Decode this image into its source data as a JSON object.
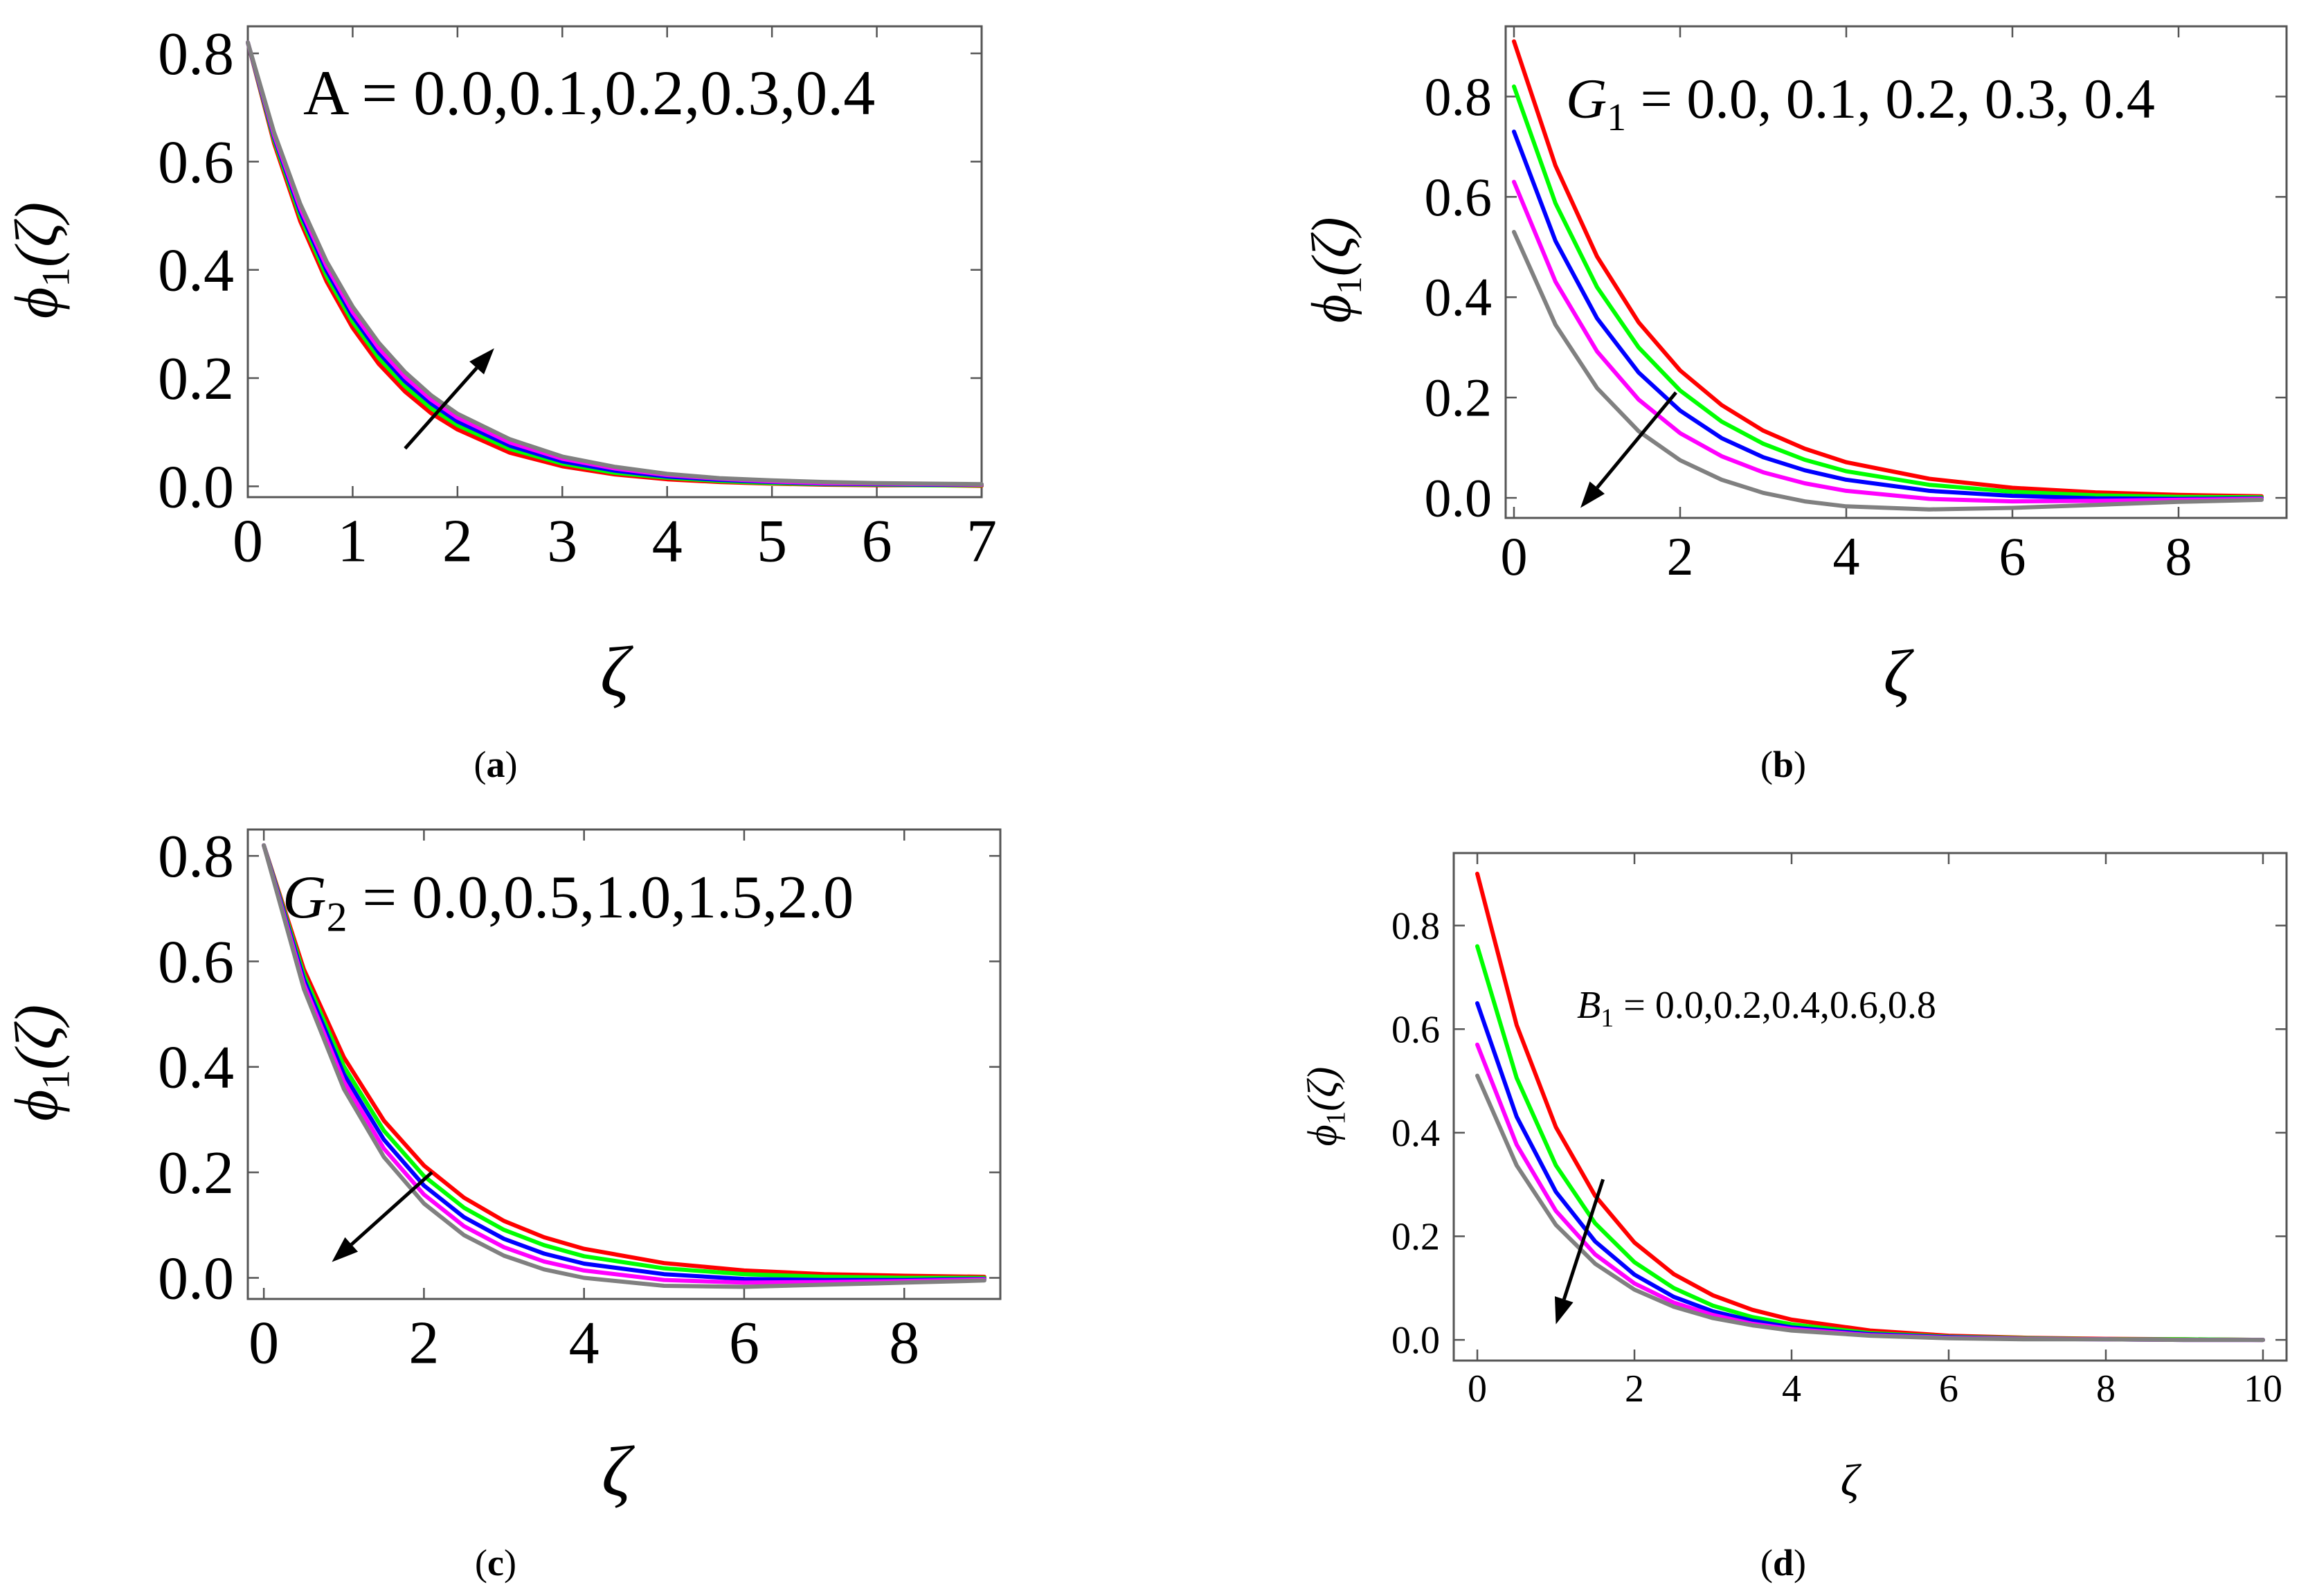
{
  "chart_data": [
    {
      "panel": "a",
      "type": "line",
      "caption": "(a)",
      "xlabel": "ζ",
      "ylabel": "ϕ1(ζ)",
      "ylabel_base": "ϕ",
      "ylabel_sub": "1",
      "ylabel_tail": "(ζ)",
      "annotation": "A = 0.0,0.1,0.2,0.3,0.4",
      "annotation_parts": {
        "var": "A",
        "sub": "",
        "values": " = 0.0,0.1,0.2,0.3,0.4"
      },
      "xlim": [
        0,
        7
      ],
      "ylim": [
        -0.02,
        0.85
      ],
      "xticks": [
        0,
        1,
        2,
        3,
        4,
        5,
        6,
        7
      ],
      "xtick_labels": [
        "0",
        "1",
        "2",
        "3",
        "4",
        "5",
        "6",
        "7"
      ],
      "yticks": [
        0.0,
        0.2,
        0.4,
        0.6,
        0.8
      ],
      "ytick_labels": [
        "0.0",
        "0.2",
        "0.4",
        "0.6",
        "0.8"
      ],
      "arrow": {
        "from": [
          1.5,
          0.07
        ],
        "to": [
          2.35,
          0.255
        ]
      },
      "series": [
        {
          "color": "#ff0000",
          "x": [
            0,
            0.25,
            0.5,
            0.75,
            1,
            1.25,
            1.5,
            1.75,
            2,
            2.5,
            3,
            3.5,
            4,
            4.5,
            5,
            5.5,
            6,
            6.5,
            7
          ],
          "values": [
            0.82,
            0.634,
            0.49,
            0.379,
            0.293,
            0.226,
            0.175,
            0.135,
            0.105,
            0.062,
            0.037,
            0.022,
            0.013,
            0.008,
            0.005,
            0.003,
            0.002,
            0.002,
            0.001
          ]
        },
        {
          "color": "#00ff00",
          "x": [
            0,
            0.25,
            0.5,
            0.75,
            1,
            1.25,
            1.5,
            1.75,
            2,
            2.5,
            3,
            3.5,
            4,
            4.5,
            5,
            5.5,
            6,
            6.5,
            7
          ],
          "values": [
            0.82,
            0.64,
            0.499,
            0.389,
            0.304,
            0.237,
            0.185,
            0.144,
            0.113,
            0.069,
            0.042,
            0.025,
            0.016,
            0.01,
            0.006,
            0.004,
            0.003,
            0.002,
            0.002
          ]
        },
        {
          "color": "#0000ff",
          "x": [
            0,
            0.25,
            0.5,
            0.75,
            1,
            1.25,
            1.5,
            1.75,
            2,
            2.5,
            3,
            3.5,
            4,
            4.5,
            5,
            5.5,
            6,
            6.5,
            7
          ],
          "values": [
            0.82,
            0.645,
            0.507,
            0.399,
            0.314,
            0.247,
            0.194,
            0.153,
            0.12,
            0.075,
            0.046,
            0.029,
            0.018,
            0.012,
            0.008,
            0.005,
            0.004,
            0.003,
            0.003
          ]
        },
        {
          "color": "#ff00ff",
          "x": [
            0,
            0.25,
            0.5,
            0.75,
            1,
            1.25,
            1.5,
            1.75,
            2,
            2.5,
            3,
            3.5,
            4,
            4.5,
            5,
            5.5,
            6,
            6.5,
            7
          ],
          "values": [
            0.82,
            0.649,
            0.514,
            0.407,
            0.322,
            0.255,
            0.202,
            0.16,
            0.127,
            0.081,
            0.051,
            0.033,
            0.021,
            0.014,
            0.009,
            0.006,
            0.005,
            0.004,
            0.003
          ]
        },
        {
          "color": "#808080",
          "x": [
            0,
            0.25,
            0.5,
            0.75,
            1,
            1.25,
            1.5,
            1.75,
            2,
            2.5,
            3,
            3.5,
            4,
            4.5,
            5,
            5.5,
            6,
            6.5,
            7
          ],
          "values": [
            0.82,
            0.654,
            0.522,
            0.416,
            0.332,
            0.265,
            0.211,
            0.168,
            0.134,
            0.087,
            0.055,
            0.036,
            0.023,
            0.015,
            0.011,
            0.008,
            0.006,
            0.005,
            0.004
          ]
        }
      ]
    },
    {
      "panel": "b",
      "type": "line",
      "caption": "(b)",
      "xlabel": "ζ",
      "ylabel": "ϕ1(ζ)",
      "ylabel_base": "ϕ",
      "ylabel_sub": "1",
      "ylabel_tail": "(ζ)",
      "annotation": "G1 = 0.0, 0.1, 0.2, 0.3, 0.4",
      "annotation_parts": {
        "var": "G",
        "sub": "1",
        "values": " = 0.0, 0.1, 0.2, 0.3, 0.4"
      },
      "xlim": [
        -0.1,
        9.3
      ],
      "ylim": [
        -0.04,
        0.94
      ],
      "xticks": [
        0,
        2,
        4,
        6,
        8
      ],
      "xtick_labels": [
        "0",
        "2",
        "4",
        "6",
        "8"
      ],
      "yticks": [
        0.0,
        0.2,
        0.4,
        0.6,
        0.8
      ],
      "ytick_labels": [
        "0.0",
        "0.2",
        "0.4",
        "0.6",
        "0.8"
      ],
      "arrow": {
        "from": [
          1.95,
          0.21
        ],
        "to": [
          0.8,
          -0.02
        ]
      },
      "series": [
        {
          "color": "#ff0000",
          "x": [
            0,
            0.5,
            1,
            1.5,
            2,
            2.5,
            3,
            3.5,
            4,
            5,
            6,
            7,
            8,
            9
          ],
          "values": [
            0.91,
            0.662,
            0.481,
            0.35,
            0.254,
            0.185,
            0.134,
            0.098,
            0.071,
            0.038,
            0.02,
            0.011,
            0.006,
            0.003
          ]
        },
        {
          "color": "#00ff00",
          "x": [
            0,
            0.5,
            1,
            1.5,
            2,
            2.5,
            3,
            3.5,
            4,
            5,
            6,
            7,
            8,
            9
          ],
          "values": [
            0.82,
            0.587,
            0.42,
            0.3,
            0.214,
            0.152,
            0.108,
            0.076,
            0.053,
            0.026,
            0.012,
            0.005,
            0.002,
            0.001
          ]
        },
        {
          "color": "#0000ff",
          "x": [
            0,
            0.5,
            1,
            1.5,
            2,
            2.5,
            3,
            3.5,
            4,
            5,
            6,
            7,
            8,
            9
          ],
          "values": [
            0.73,
            0.512,
            0.358,
            0.25,
            0.174,
            0.119,
            0.081,
            0.055,
            0.036,
            0.014,
            0.004,
            -0.001,
            -0.002,
            -0.001
          ]
        },
        {
          "color": "#ff00ff",
          "x": [
            0,
            0.5,
            1,
            1.5,
            2,
            2.5,
            3,
            3.5,
            4,
            5,
            6,
            7,
            8,
            9
          ],
          "values": [
            0.63,
            0.431,
            0.292,
            0.196,
            0.129,
            0.083,
            0.051,
            0.029,
            0.014,
            -0.002,
            -0.007,
            -0.006,
            -0.004,
            -0.002
          ]
        },
        {
          "color": "#808080",
          "x": [
            0,
            0.5,
            1,
            1.5,
            2,
            2.5,
            3,
            3.5,
            4,
            5,
            6,
            7,
            8,
            9
          ],
          "values": [
            0.53,
            0.345,
            0.219,
            0.133,
            0.075,
            0.036,
            0.01,
            -0.007,
            -0.017,
            -0.023,
            -0.02,
            -0.014,
            -0.008,
            -0.004
          ]
        }
      ]
    },
    {
      "panel": "c",
      "type": "line",
      "caption": "(c)",
      "xlabel": "ζ",
      "ylabel": "ϕ1(ζ)",
      "ylabel_base": "ϕ",
      "ylabel_sub": "1",
      "ylabel_tail": "(ζ)",
      "annotation": "G2 = 0.0,0.5,1.0,1.5,2.0",
      "annotation_parts": {
        "var": "G",
        "sub": "2",
        "values": " = 0.0,0.5,1.0,1.5,2.0"
      },
      "xlim": [
        -0.2,
        9.2
      ],
      "ylim": [
        -0.04,
        0.85
      ],
      "xticks": [
        0,
        2,
        4,
        6,
        8
      ],
      "xtick_labels": [
        "0",
        "2",
        "4",
        "6",
        "8"
      ],
      "yticks": [
        0.0,
        0.2,
        0.4,
        0.6,
        0.8
      ],
      "ytick_labels": [
        "0.0",
        "0.2",
        "0.4",
        "0.6",
        "0.8"
      ],
      "arrow": {
        "from": [
          2.1,
          0.2
        ],
        "to": [
          0.85,
          0.03
        ]
      },
      "series": [
        {
          "color": "#ff0000",
          "x": [
            0,
            0.5,
            1,
            1.5,
            2,
            2.5,
            3,
            3.5,
            4,
            5,
            6,
            7,
            8,
            9
          ],
          "values": [
            0.82,
            0.585,
            0.418,
            0.298,
            0.213,
            0.152,
            0.108,
            0.077,
            0.055,
            0.028,
            0.014,
            0.007,
            0.004,
            0.002
          ]
        },
        {
          "color": "#00ff00",
          "x": [
            0,
            0.5,
            1,
            1.5,
            2,
            2.5,
            3,
            3.5,
            4,
            5,
            6,
            7,
            8,
            9
          ],
          "values": [
            0.82,
            0.575,
            0.401,
            0.279,
            0.193,
            0.133,
            0.091,
            0.062,
            0.041,
            0.018,
            0.007,
            0.002,
            0.0,
            0.0
          ]
        },
        {
          "color": "#0000ff",
          "x": [
            0,
            0.5,
            1,
            1.5,
            2,
            2.5,
            3,
            3.5,
            4,
            5,
            6,
            7,
            8,
            9
          ],
          "values": [
            0.82,
            0.566,
            0.386,
            0.262,
            0.175,
            0.115,
            0.074,
            0.046,
            0.027,
            0.007,
            -0.002,
            -0.004,
            -0.004,
            -0.002
          ]
        },
        {
          "color": "#ff00ff",
          "x": [
            0,
            0.5,
            1,
            1.5,
            2,
            2.5,
            3,
            3.5,
            4,
            5,
            6,
            7,
            8,
            9
          ],
          "values": [
            0.82,
            0.557,
            0.372,
            0.245,
            0.158,
            0.098,
            0.058,
            0.031,
            0.014,
            -0.004,
            -0.009,
            -0.008,
            -0.006,
            -0.003
          ]
        },
        {
          "color": "#808080",
          "x": [
            0,
            0.5,
            1,
            1.5,
            2,
            2.5,
            3,
            3.5,
            4,
            5,
            6,
            7,
            8,
            9
          ],
          "values": [
            0.82,
            0.548,
            0.358,
            0.229,
            0.141,
            0.081,
            0.042,
            0.016,
            0.0,
            -0.015,
            -0.017,
            -0.013,
            -0.009,
            -0.005
          ]
        }
      ]
    },
    {
      "panel": "d",
      "type": "line",
      "caption": "(d)",
      "xlabel": "ζ",
      "ylabel": "ϕ1(ζ)",
      "ylabel_base": "ϕ",
      "ylabel_sub": "1",
      "ylabel_tail": "(ζ)",
      "annotation": "B1 = 0.0,0.2,0.4,0.6,0.8",
      "annotation_parts": {
        "var": "B",
        "sub": "1",
        "values": " = 0.0,0.2,0.4,0.6,0.8"
      },
      "xlim": [
        -0.3,
        10.3
      ],
      "ylim": [
        -0.04,
        0.94
      ],
      "xticks": [
        0,
        2,
        4,
        6,
        8,
        10
      ],
      "xtick_labels": [
        "0",
        "2",
        "4",
        "6",
        "8",
        "10"
      ],
      "yticks": [
        0.0,
        0.2,
        0.4,
        0.6,
        0.8
      ],
      "ytick_labels": [
        "0.0",
        "0.2",
        "0.4",
        "0.6",
        "0.8"
      ],
      "arrow": {
        "from": [
          1.6,
          0.31
        ],
        "to": [
          1.0,
          0.03
        ]
      },
      "series": [
        {
          "color": "#ff0000",
          "x": [
            0,
            0.5,
            1,
            1.5,
            2,
            2.5,
            3,
            3.5,
            4,
            5,
            6,
            7,
            8,
            9,
            10
          ],
          "values": [
            0.9,
            0.608,
            0.411,
            0.278,
            0.188,
            0.127,
            0.086,
            0.058,
            0.039,
            0.018,
            0.008,
            0.004,
            0.002,
            0.001,
            0.0
          ]
        },
        {
          "color": "#00ff00",
          "x": [
            0,
            0.5,
            1,
            1.5,
            2,
            2.5,
            3,
            3.5,
            4,
            5,
            6,
            7,
            8,
            9,
            10
          ],
          "values": [
            0.76,
            0.506,
            0.337,
            0.225,
            0.15,
            0.1,
            0.066,
            0.044,
            0.03,
            0.013,
            0.006,
            0.003,
            0.001,
            0.001,
            0.0
          ]
        },
        {
          "color": "#0000ff",
          "x": [
            0,
            0.5,
            1,
            1.5,
            2,
            2.5,
            3,
            3.5,
            4,
            5,
            6,
            7,
            8,
            9,
            10
          ],
          "values": [
            0.65,
            0.431,
            0.286,
            0.19,
            0.126,
            0.083,
            0.055,
            0.037,
            0.024,
            0.011,
            0.005,
            0.002,
            0.001,
            0.0,
            0.0
          ]
        },
        {
          "color": "#ff00ff",
          "x": [
            0,
            0.5,
            1,
            1.5,
            2,
            2.5,
            3,
            3.5,
            4,
            5,
            6,
            7,
            8,
            9,
            10
          ],
          "values": [
            0.57,
            0.377,
            0.249,
            0.165,
            0.109,
            0.072,
            0.048,
            0.031,
            0.021,
            0.009,
            0.004,
            0.002,
            0.001,
            0.0,
            0.0
          ]
        },
        {
          "color": "#808080",
          "x": [
            0,
            0.5,
            1,
            1.5,
            2,
            2.5,
            3,
            3.5,
            4,
            5,
            6,
            7,
            8,
            9,
            10
          ],
          "values": [
            0.51,
            0.337,
            0.222,
            0.147,
            0.097,
            0.064,
            0.042,
            0.028,
            0.018,
            0.008,
            0.003,
            0.001,
            0.001,
            0.0,
            0.0
          ]
        }
      ]
    }
  ]
}
